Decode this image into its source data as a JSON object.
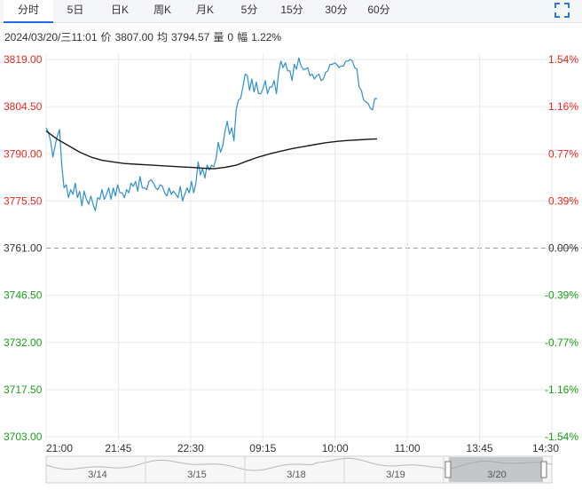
{
  "tabs": [
    {
      "label": "分时",
      "active": true
    },
    {
      "label": "5日"
    },
    {
      "label": "日K"
    },
    {
      "label": "周K"
    },
    {
      "label": "月K"
    },
    {
      "label": "5分"
    },
    {
      "label": "15分"
    },
    {
      "label": "30分"
    },
    {
      "label": "60分"
    }
  ],
  "info": {
    "datetime": "2024/03/20/三11:01",
    "price_label": "价",
    "price": "3807.00",
    "avg_label": "均",
    "avg": "3794.57",
    "vol_label": "量",
    "vol": "0",
    "amp_label": "幅",
    "amp": "1.22%"
  },
  "colors": {
    "up": "#e8281f",
    "down": "#1aa01a",
    "price_line": "#2e8fd0",
    "avg_line": "#1a1a1a",
    "grid": "#e9e9e9",
    "tab_active": "#1a73e8"
  },
  "icons": {
    "expand": "fullscreen-expand-icon"
  },
  "chart_data": {
    "type": "line",
    "base": 3761.0,
    "ylim": [
      3703.0,
      3819.0
    ],
    "y_ticks_left": [
      "3819.00",
      "3804.50",
      "3790.00",
      "3775.50",
      "3761.00",
      "3746.50",
      "3732.00",
      "3717.50",
      "3703.00"
    ],
    "y_ticks_right": [
      "1.54%",
      "1.16%",
      "0.77%",
      "0.39%",
      "0.00%",
      "-0.39%",
      "-0.77%",
      "-1.16%",
      "-1.54%"
    ],
    "x_ticks": [
      "21:00",
      "21:45",
      "22:30",
      "09:15",
      "10:00",
      "11:00",
      "13:45",
      "14:30"
    ],
    "grid": true,
    "series": [
      {
        "type": "price",
        "x_minutes": [
          0,
          2,
          4,
          6,
          8,
          10,
          12,
          14,
          16,
          18,
          20,
          22,
          24,
          26,
          28,
          30,
          32,
          34,
          36,
          38,
          40,
          42,
          44,
          46,
          48,
          50,
          52,
          54,
          56,
          58,
          60,
          62,
          64,
          66,
          68,
          70,
          72,
          74,
          76,
          78,
          80,
          82,
          84,
          86,
          88,
          90,
          92,
          94,
          96,
          98,
          100,
          102,
          104,
          106,
          108,
          110,
          112,
          114,
          116,
          118,
          120,
          122,
          124,
          126,
          128,
          130,
          132,
          134,
          136,
          138,
          140,
          142,
          144,
          146,
          148,
          150,
          152,
          154,
          156,
          158,
          160,
          162,
          164,
          166,
          168,
          170,
          172,
          174,
          176,
          178,
          180,
          182,
          184,
          186,
          188,
          190,
          192,
          194,
          196,
          198,
          200,
          202,
          204,
          206,
          208,
          210,
          212,
          214,
          216,
          218,
          220,
          222,
          224,
          226,
          228,
          230,
          232,
          234,
          236,
          238,
          240,
          242,
          244,
          246,
          248,
          250,
          252,
          254,
          256,
          258,
          260,
          262,
          264,
          266,
          268,
          270,
          272,
          274,
          276,
          278,
          280,
          282,
          284,
          286,
          288,
          290,
          292,
          294,
          296
        ],
        "values": [
          3798.0,
          3796.5,
          3794.0,
          3789.0,
          3792.5,
          3795.5,
          3797.5,
          3786.5,
          3779.5,
          3780.5,
          3776.5,
          3779.0,
          3777.5,
          3781.0,
          3776.5,
          3778.5,
          3774.0,
          3778.5,
          3776.0,
          3774.5,
          3777.0,
          3774.5,
          3772.5,
          3776.5,
          3776.0,
          3779.0,
          3776.0,
          3777.5,
          3779.5,
          3776.0,
          3779.5,
          3777.0,
          3780.5,
          3778.0,
          3778.0,
          3776.5,
          3779.0,
          3778.0,
          3781.0,
          3780.0,
          3781.5,
          3778.5,
          3783.0,
          3779.5,
          3779.5,
          3779.0,
          3781.5,
          3782.0,
          3781.0,
          3779.5,
          3779.0,
          3780.5,
          3780.0,
          3778.0,
          3777.0,
          3779.5,
          3777.5,
          3778.5,
          3777.5,
          3776.5,
          3780.0,
          3775.5,
          3777.5,
          3779.5,
          3778.0,
          3781.5,
          3778.0,
          3781.0,
          3787.5,
          3783.5,
          3785.5,
          3782.5,
          3786.5,
          3785.0,
          3786.5,
          3786.0,
          3788.5,
          3793.5,
          3790.5,
          3792.5,
          3797.0,
          3800.0,
          3796.0,
          3798.0,
          3794.0,
          3803.5,
          3806.5,
          3807.0,
          3810.5,
          3814.5,
          3814.0,
          3809.5,
          3813.0,
          3809.0,
          3812.0,
          3808.5,
          3808.5,
          3810.0,
          3812.5,
          3808.5,
          3810.5,
          3810.5,
          3812.5,
          3808.5,
          3815.0,
          3818.5,
          3816.5,
          3818.0,
          3815.5,
          3815.5,
          3812.5,
          3817.5,
          3816.0,
          3819.5,
          3817.0,
          3816.0,
          3816.0,
          3816.5,
          3814.0,
          3814.5,
          3813.0,
          3814.0,
          3814.5,
          3812.5,
          3813.0,
          3815.0,
          3815.5,
          3817.5,
          3817.5,
          3818.0,
          3817.5,
          3816.5,
          3817.0,
          3817.0,
          3818.5,
          3818.5,
          3819.0,
          3818.5,
          3816.5,
          3816.0,
          3810.5,
          3809.5,
          3806.5,
          3806.0,
          3805.5,
          3804.0,
          3803.5,
          3807.0,
          3807.0
        ]
      },
      {
        "type": "average",
        "x_minutes": [
          0,
          10,
          20,
          30,
          40,
          50,
          60,
          70,
          80,
          90,
          100,
          110,
          120,
          130,
          140,
          150,
          160,
          170,
          180,
          190,
          200,
          210,
          220,
          230,
          240,
          250,
          260,
          270,
          280,
          290,
          296
        ],
        "values": [
          3797.0,
          3794.5,
          3792.5,
          3790.5,
          3789.0,
          3788.0,
          3787.5,
          3787.0,
          3786.8,
          3786.6,
          3786.4,
          3786.2,
          3786.0,
          3785.8,
          3785.6,
          3785.4,
          3785.8,
          3786.5,
          3787.8,
          3789.0,
          3790.0,
          3790.8,
          3791.6,
          3792.2,
          3792.8,
          3793.4,
          3793.8,
          3794.1,
          3794.3,
          3794.5,
          3794.6
        ]
      }
    ]
  },
  "navigator": {
    "labels": [
      "3/14",
      "3/15",
      "3/18",
      "3/19",
      "3/20"
    ]
  }
}
